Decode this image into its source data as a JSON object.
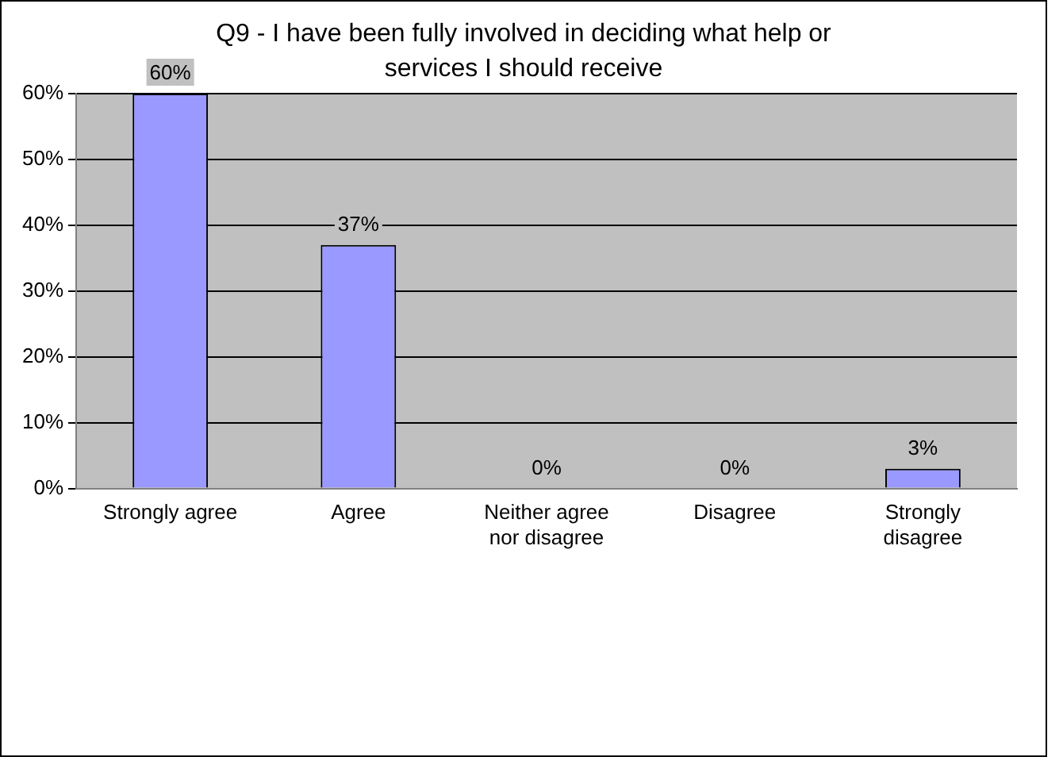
{
  "chart_data": {
    "type": "bar",
    "title": "Q9 - I have been fully involved in deciding what help or services I should receive",
    "categories": [
      "Strongly agree",
      "Agree",
      "Neither agree nor disagree",
      "Disagree",
      "Strongly disagree"
    ],
    "values": [
      60,
      37,
      0,
      0,
      3
    ],
    "value_labels": [
      "60%",
      "37%",
      "0%",
      "0%",
      "3%"
    ],
    "color": "#9999ff",
    "ylim": [
      0,
      60
    ],
    "yticks": [
      {
        "value": 0,
        "label": "0%"
      },
      {
        "value": 10,
        "label": "10%"
      },
      {
        "value": 20,
        "label": "20%"
      },
      {
        "value": 30,
        "label": "30%"
      },
      {
        "value": 40,
        "label": "40%"
      },
      {
        "value": 50,
        "label": "50%"
      },
      {
        "value": 60,
        "label": "60%"
      }
    ],
    "grid": "y",
    "legend": false
  }
}
